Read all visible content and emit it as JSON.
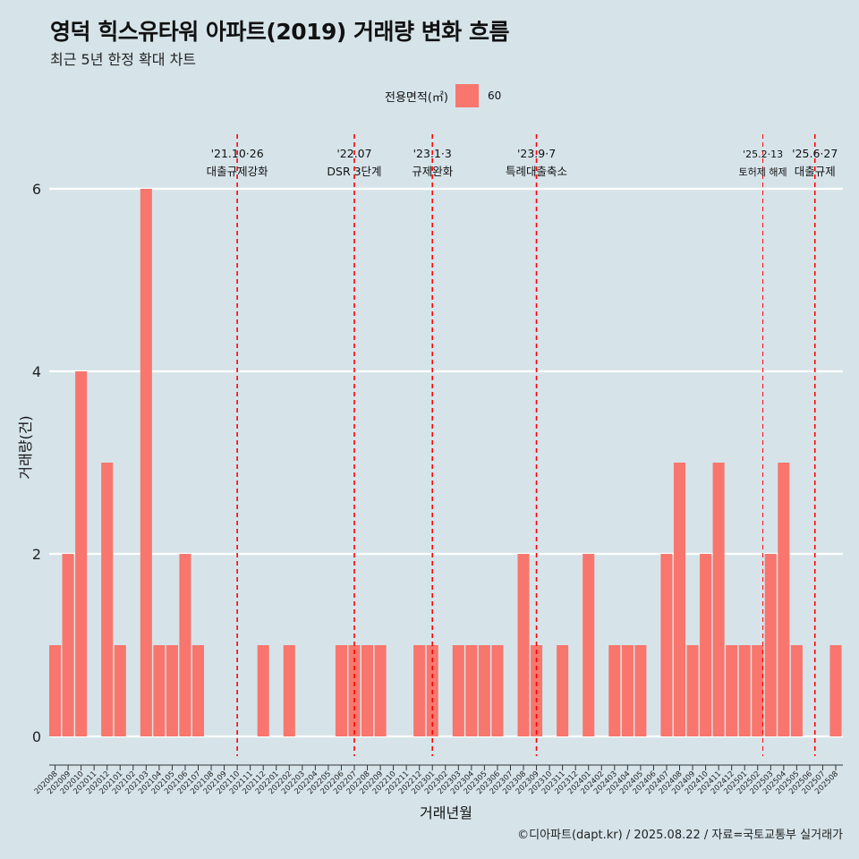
{
  "header": {
    "title": "영덕 힉스유타워 아파트(2019) 거래량 변화 흐름",
    "subtitle": "최근 5년 한정 확대 차트"
  },
  "legend": {
    "title": "전용면적(㎡)",
    "label": "60",
    "color": "#f8766d"
  },
  "caption": "©디아파트(dapt.kr) / 2025.08.22 / 자료=국토교통부 실거래가",
  "colors": {
    "background": "#d6e4ea",
    "bar": "#f8766d",
    "grid": "#ffffff",
    "event_line": "#ff0000"
  },
  "chart_data": {
    "type": "bar",
    "title": "영덕 힉스유타워 아파트(2019) 거래량 변화 흐름",
    "xlabel": "거래년월",
    "ylabel": "거래량(건)",
    "ylim": [
      0,
      6
    ],
    "yticks": [
      0,
      2,
      4,
      6
    ],
    "categories": [
      "202008",
      "202009",
      "202010",
      "202011",
      "202012",
      "202101",
      "202102",
      "202103",
      "202104",
      "202105",
      "202106",
      "202107",
      "202108",
      "202109",
      "202110",
      "202111",
      "202112",
      "202201",
      "202202",
      "202203",
      "202204",
      "202205",
      "202206",
      "202207",
      "202208",
      "202209",
      "202210",
      "202211",
      "202212",
      "202301",
      "202302",
      "202303",
      "202304",
      "202305",
      "202306",
      "202307",
      "202308",
      "202309",
      "202310",
      "202311",
      "202312",
      "202401",
      "202402",
      "202403",
      "202404",
      "202405",
      "202406",
      "202407",
      "202408",
      "202409",
      "202410",
      "202411",
      "202412",
      "202501",
      "202502",
      "202503",
      "202504",
      "202505",
      "202506",
      "202507",
      "202508"
    ],
    "series": [
      {
        "name": "60",
        "values": [
          1,
          2,
          4,
          0,
          3,
          1,
          0,
          6,
          1,
          1,
          2,
          1,
          0,
          0,
          0,
          0,
          1,
          0,
          1,
          0,
          0,
          0,
          1,
          1,
          1,
          1,
          0,
          0,
          1,
          1,
          0,
          1,
          1,
          1,
          1,
          0,
          2,
          1,
          0,
          1,
          0,
          2,
          0,
          1,
          1,
          1,
          0,
          2,
          3,
          1,
          2,
          3,
          1,
          1,
          1,
          2,
          3,
          1,
          0,
          0,
          1
        ]
      }
    ],
    "events": [
      {
        "date": "'21.10·26",
        "label": "대출규제강화",
        "pos": 14.0,
        "style": "bold"
      },
      {
        "date": "'22.07",
        "label": "DSR 3단계",
        "pos": 23.0,
        "style": "bold"
      },
      {
        "date": "'23.1·3",
        "label": "규제완화",
        "pos": 29.0,
        "style": "bold"
      },
      {
        "date": "'23.9·7",
        "label": "특례대출축소",
        "pos": 37.0,
        "style": "bold"
      },
      {
        "date": "'25.2·13",
        "label": "토허제 해제",
        "pos": 54.4,
        "style": "thin"
      },
      {
        "date": "'25.6·27",
        "label": "대출규제",
        "pos": 58.4,
        "style": "bold"
      }
    ]
  }
}
